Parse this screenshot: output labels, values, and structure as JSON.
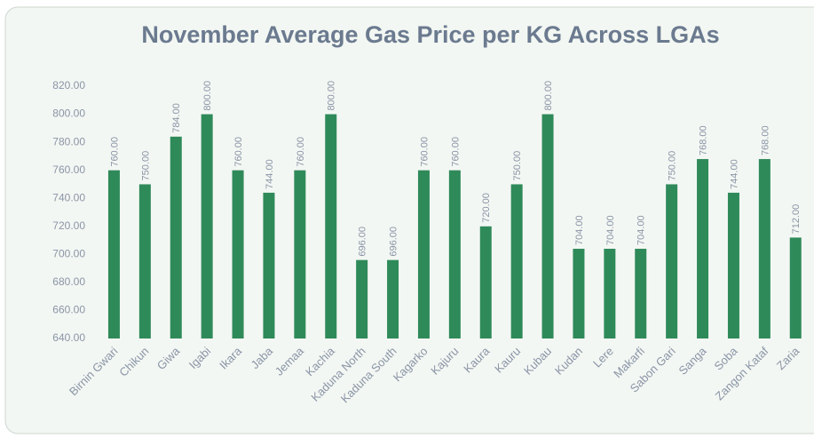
{
  "chart_data": {
    "type": "bar",
    "title": "November Average Gas Price per KG Across LGAs",
    "categories": [
      "Birnin Gwari",
      "Chikun",
      "Giwa",
      "Igabi",
      "Ikara",
      "Jaba",
      "Jemaa",
      "Kachia",
      "Kaduna North",
      "Kaduna South",
      "Kagarko",
      "Kajuru",
      "Kaura",
      "Kauru",
      "Kubau",
      "Kudan",
      "Lere",
      "Makarfi",
      "Sabon Gari",
      "Sanga",
      "Soba",
      "Zangon Kataf",
      "Zaria"
    ],
    "values": [
      760,
      750,
      784,
      800,
      760,
      744,
      760,
      800,
      696,
      696,
      760,
      760,
      720,
      750,
      800,
      704,
      704,
      704,
      750,
      768,
      744,
      768,
      712
    ],
    "value_labels": [
      "760.00",
      "750.00",
      "784.00",
      "800.00",
      "760.00",
      "744.00",
      "760.00",
      "800.00",
      "696.00",
      "696.00",
      "760.00",
      "760.00",
      "720.00",
      "750.00",
      "800.00",
      "704.00",
      "704.00",
      "704.00",
      "750.00",
      "768.00",
      "744.00",
      "768.00",
      "712.00"
    ],
    "color": "#2f8a5a",
    "ylim": [
      640,
      820
    ],
    "yticks": [
      {
        "value": 640,
        "label": "640.00"
      },
      {
        "value": 660,
        "label": "660.00"
      },
      {
        "value": 680,
        "label": "680.00"
      },
      {
        "value": 700,
        "label": "700.00"
      },
      {
        "value": 720,
        "label": "720.00"
      },
      {
        "value": 740,
        "label": "740.00"
      },
      {
        "value": 760,
        "label": "760.00"
      },
      {
        "value": 780,
        "label": "780.00"
      },
      {
        "value": 800,
        "label": "800.00"
      },
      {
        "value": 820,
        "label": "820.00"
      }
    ],
    "grid": false
  }
}
